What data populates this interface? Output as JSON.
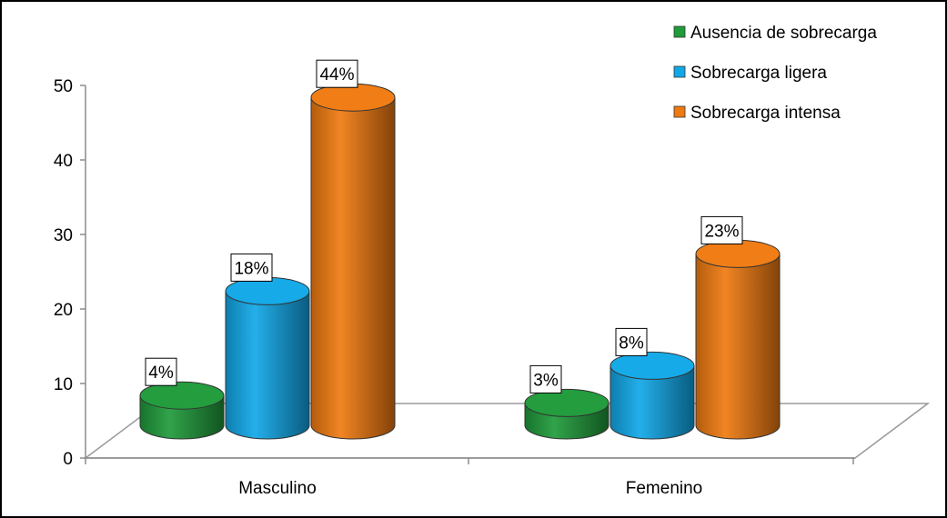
{
  "chart_data": {
    "type": "bar",
    "categories": [
      "Masculino",
      "Femenino"
    ],
    "series": [
      {
        "name": "Ausencia de sobrecarga",
        "values": [
          4,
          3
        ],
        "labels": [
          "4%",
          "3%"
        ],
        "color": "#1f9b3a"
      },
      {
        "name": "Sobrecarga ligera",
        "values": [
          18,
          8
        ],
        "labels": [
          "18%",
          "8%"
        ],
        "color": "#11a8e8"
      },
      {
        "name": "Sobrecarga intensa",
        "values": [
          44,
          23
        ],
        "labels": [
          "44%",
          "23%"
        ],
        "color": "#f07a10"
      }
    ],
    "yticks": [
      "0",
      "10",
      "20",
      "30",
      "40",
      "50"
    ],
    "ylim": [
      0,
      50
    ],
    "legend_position": "top-right",
    "grid": false,
    "style": "3d-cylinder"
  }
}
